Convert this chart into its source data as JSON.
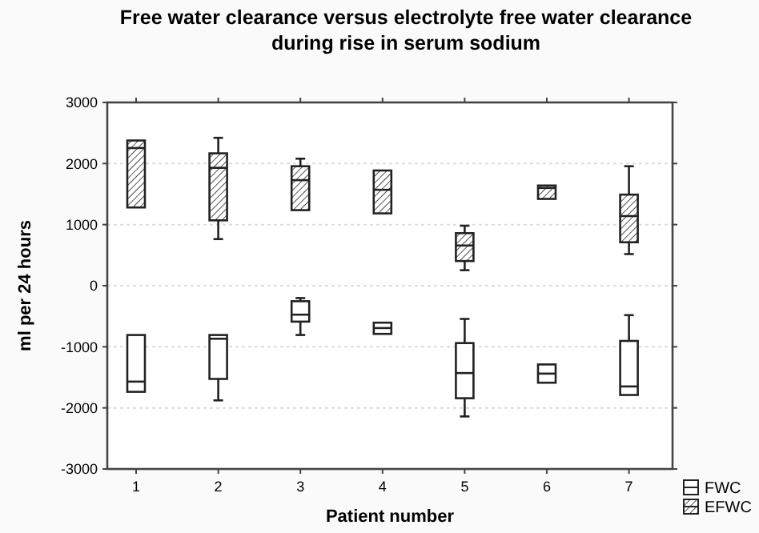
{
  "chart_data": {
    "type": "box",
    "title": "Free water clearance versus electrolyte free water clearance during rise in serum sodium",
    "xlabel": "Patient number",
    "ylabel": "ml per 24 hours",
    "categories": [
      "1",
      "2",
      "3",
      "4",
      "5",
      "6",
      "7"
    ],
    "ylim": [
      -3000,
      3000
    ],
    "yticks": [
      -3000,
      -2000,
      -1000,
      0,
      1000,
      2000,
      3000
    ],
    "grid": "y",
    "legend": "bottom right",
    "series": [
      {
        "name": "FWC",
        "color": "#ffffff",
        "boxes": [
          {
            "low": -1737,
            "q1": -1737,
            "median": -1570,
            "q3": -807,
            "high": -807
          },
          {
            "low": -1877,
            "q1": -1526,
            "median": -868,
            "q3": -807,
            "high": -807
          },
          {
            "low": -807,
            "q1": -588,
            "median": -474,
            "q3": -254,
            "high": -202
          },
          {
            "low": -789,
            "q1": -789,
            "median": -693,
            "q3": -605,
            "high": -605
          },
          {
            "low": -2140,
            "q1": -1842,
            "median": -1430,
            "q3": -939,
            "high": -544
          },
          {
            "low": -1588,
            "q1": -1588,
            "median": -1439,
            "q3": -1289,
            "high": -1289
          },
          {
            "low": -1789,
            "q1": -1789,
            "median": -1649,
            "q3": -904,
            "high": -482
          }
        ]
      },
      {
        "name": "EFWC",
        "color": "#222222",
        "boxes": [
          {
            "low": 1281,
            "q1": 1281,
            "median": 2254,
            "q3": 2377,
            "high": 2377
          },
          {
            "low": 763,
            "q1": 1070,
            "median": 1930,
            "q3": 2167,
            "high": 2421
          },
          {
            "low": 1237,
            "q1": 1237,
            "median": 1728,
            "q3": 1956,
            "high": 2079
          },
          {
            "low": 1184,
            "q1": 1184,
            "median": 1570,
            "q3": 1886,
            "high": 1886
          },
          {
            "low": 254,
            "q1": 404,
            "median": 658,
            "q3": 860,
            "high": 982
          },
          {
            "low": 1421,
            "q1": 1421,
            "median": 1600,
            "q3": 1640,
            "high": 1640
          },
          {
            "low": 518,
            "q1": 711,
            "median": 1140,
            "q3": 1491,
            "high": 1956
          }
        ]
      }
    ]
  }
}
